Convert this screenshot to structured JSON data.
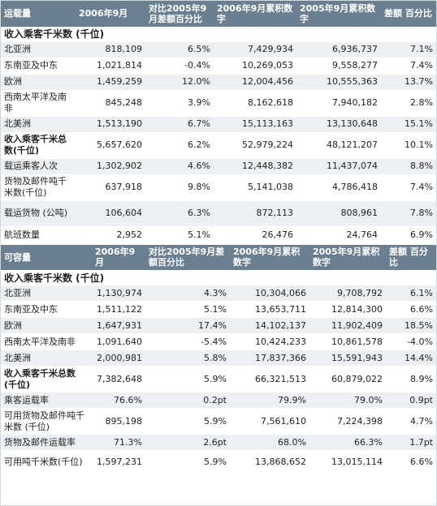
{
  "table1": {
    "headers": [
      "运载量",
      "2006年9月",
      "对比2005年9月差额百分比",
      "2006年9月累积数字",
      "2005年9月累积数字",
      "差额 百分比"
    ],
    "section_title": "收入乘客千米数 (千位)",
    "rows": [
      [
        "北亚洲",
        "818,109",
        "6.5%",
        "7,429,934",
        "6,936,737",
        "7.1%"
      ],
      [
        "东南亚及中东",
        "1,021,814",
        "-0.4%",
        "10,269,053",
        "9,558,277",
        "7.4%"
      ],
      [
        "欧洲",
        "1,459,259",
        "12.0%",
        "12,004,456",
        "10,555,363",
        "13.7%"
      ],
      [
        "西南太平洋及南非",
        "845,248",
        "3.9%",
        "8,162,618",
        "7,940,182",
        "2.8%"
      ],
      [
        "北美洲",
        "1,513,190",
        "6.7%",
        "15,113,163",
        "13,130,648",
        "15.1%"
      ],
      [
        "收入乘客千米总数(千位)",
        "5,657,620",
        "6.2%",
        "52,979,224",
        "48,121,207",
        "10.1%"
      ],
      [
        "载运乘客人次",
        "1,302,902",
        "4.6%",
        "12,448,382",
        "11,437,074",
        "8.8%"
      ],
      [
        "货物及邮件吨千米数(千位)",
        "637,918",
        "9.8%",
        "5,141,038",
        "4,786,418",
        "7.4%"
      ],
      [
        "载运货物 (公吨)",
        "106,604",
        "6.3%",
        "872,113",
        "808,961",
        "7.8%"
      ],
      [
        "航班数量",
        "2,952",
        "5.1%",
        "26,476",
        "24,764",
        "6.9%"
      ]
    ]
  },
  "table2": {
    "headers": [
      "可容量",
      "2006年9月",
      "对比2005年9月差额百分比",
      "2006年9月累积数字",
      "2005年9月累积数字",
      "差额 百分比"
    ],
    "section_title": "收入乘客千米数 (千位)",
    "rows": [
      [
        "北亚洲",
        "1,130,974",
        "4.3%",
        "10,304,066",
        "9,708,792",
        "6.1%"
      ],
      [
        "东南亚及中东",
        "1,511,122",
        "5.1%",
        "13,653,711",
        "12,814,300",
        "6.6%"
      ],
      [
        "欧洲",
        "1,647,931",
        "17.4%",
        "14,102,137",
        "11,902,409",
        "18.5%"
      ],
      [
        "西南太平洋及南非",
        "1,091,640",
        "-5.4%",
        "10,424,233",
        "10,861,578",
        "-4.0%"
      ],
      [
        "北美洲",
        "2,000,981",
        "5.8%",
        "17,837,366",
        "15,591,943",
        "14.4%"
      ],
      [
        "收入乘客千米总数(千位)",
        "7,382,648",
        "5.9%",
        "66,321,513",
        "60,879,022",
        "8.9%"
      ],
      [
        "乘客运载率",
        "76.6%",
        "0.2pt",
        "79.9%",
        "79.0%",
        "0.9pt"
      ],
      [
        "可用货物及邮件吨千米数 (千位)",
        "895,198",
        "5.9%",
        "7,561,610",
        "7,224,398",
        "4.7%"
      ],
      [
        "货物及邮件运载率",
        "71.3%",
        "2.6pt",
        "68.0%",
        "66.3%",
        "1.7pt"
      ],
      [
        "可用吨千米数(千位)",
        "1,597,231",
        "5.9%",
        "13,868,652",
        "13,015,114",
        "6.6%"
      ]
    ]
  }
}
